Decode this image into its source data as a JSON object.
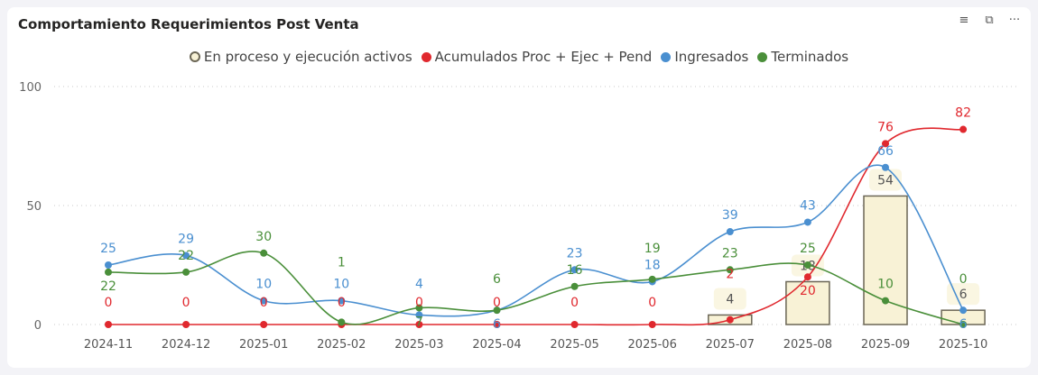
{
  "title": "Comportamiento Requerimientos Post Venta",
  "header_icons": [
    "filter-icon",
    "focus-mode-icon",
    "more-options-icon"
  ],
  "chart_data": {
    "type": "bar+line",
    "title": "Comportamiento Requerimientos Post Venta",
    "xlabel": "",
    "ylabel": "",
    "ylim": [
      0,
      100
    ],
    "yticks": [
      0,
      50,
      100
    ],
    "grid": true,
    "legend_position": "top-center",
    "categories": [
      "2024-11",
      "2024-12",
      "2025-01",
      "2025-02",
      "2025-03",
      "2025-04",
      "2025-05",
      "2025-06",
      "2025-07",
      "2025-08",
      "2025-09",
      "2025-10"
    ],
    "series": [
      {
        "name": "En proceso y ejecución activos",
        "type": "bar",
        "color": "#f8f2d6",
        "values": [
          null,
          null,
          null,
          null,
          null,
          null,
          null,
          null,
          4,
          18,
          54,
          6
        ]
      },
      {
        "name": "Acumulados Proc + Ejec + Pend",
        "type": "line",
        "color": "#e0282e",
        "values": [
          0,
          0,
          0,
          0,
          0,
          0,
          0,
          0,
          2,
          20,
          76,
          82
        ]
      },
      {
        "name": "Ingresados",
        "type": "line",
        "color": "#4a8fd0",
        "values": [
          25,
          29,
          10,
          10,
          4,
          6,
          23,
          18,
          39,
          43,
          66,
          6
        ]
      },
      {
        "name": "Terminados",
        "type": "line",
        "color": "#4a8f3a",
        "values": [
          22,
          22,
          30,
          1,
          7,
          6,
          16,
          19,
          23,
          25,
          10,
          0
        ]
      }
    ]
  }
}
